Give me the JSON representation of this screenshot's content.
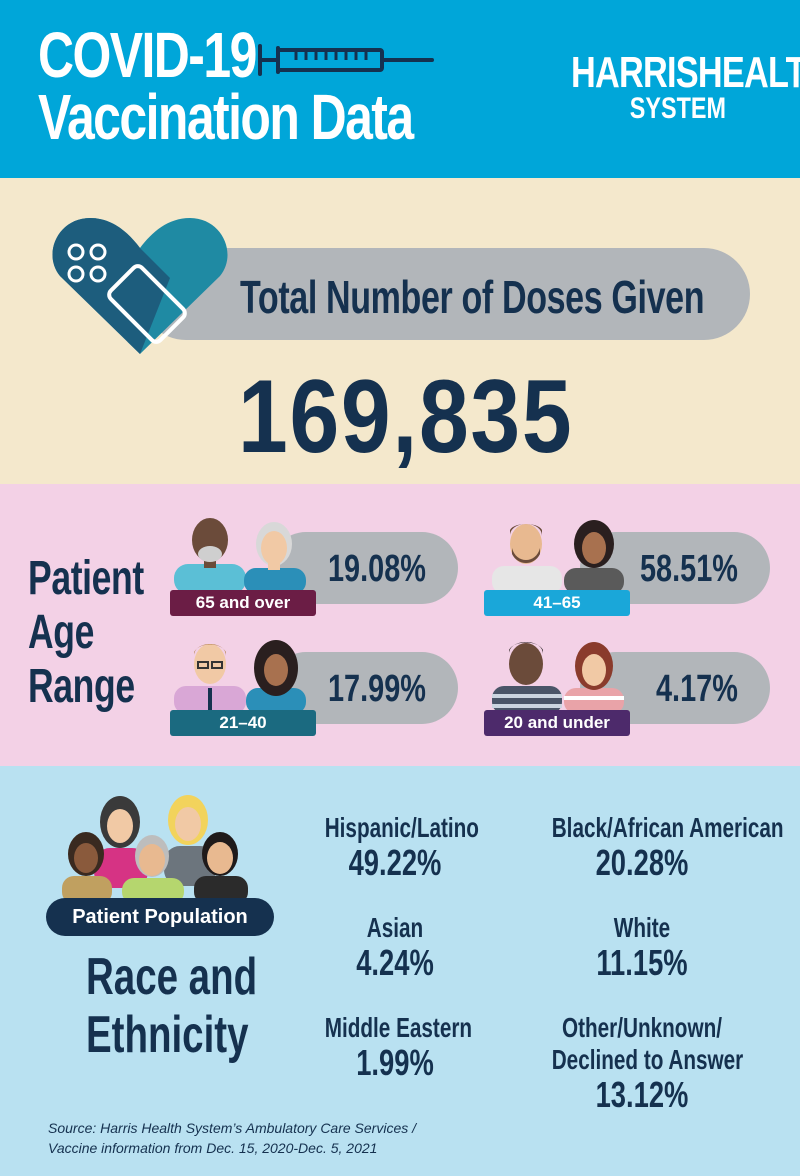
{
  "header": {
    "title_line1": "COVID-19",
    "title_line2": "Vaccination Data",
    "logo_line1": "HARRISHEALTH",
    "logo_line2": "SYSTEM"
  },
  "doses": {
    "label": "Total Number of Doses Given",
    "value": "169,835"
  },
  "age_range": {
    "title_lines": [
      "Patient",
      "Age",
      "Range"
    ],
    "groups": [
      {
        "tag": "65 and over",
        "value": "19.08%",
        "tag_color": "#6b1d45"
      },
      {
        "tag": "41–65",
        "value": "58.51%",
        "tag_color": "#1aa7d9"
      },
      {
        "tag": "21–40",
        "value": "17.99%",
        "tag_color": "#1b6a80"
      },
      {
        "tag": "20 and under",
        "value": "4.17%",
        "tag_color": "#4d2a6b"
      }
    ]
  },
  "race": {
    "badge": "Patient Population",
    "title_lines": [
      "Race and",
      "Ethnicity"
    ],
    "stats": [
      {
        "label": "Hispanic/Latino",
        "value": "49.22%"
      },
      {
        "label": "Black/African American",
        "value": "20.28%"
      },
      {
        "label": "Asian",
        "value": "4.24%"
      },
      {
        "label": "White",
        "value": "11.15%"
      },
      {
        "label": "Middle Eastern",
        "value": "1.99%"
      },
      {
        "label_lines": [
          "Other/Unknown/",
          "Declined to Answer"
        ],
        "value": "13.12%"
      }
    ],
    "source_line1": "Source: Harris Health System’s Ambulatory Care Services /",
    "source_line2": "Vaccine information from Dec. 15, 2020-Dec. 5, 2021"
  },
  "colors": {
    "header_bg": "#00a6d9",
    "doses_bg": "#f4e8cc",
    "age_bg": "#f3d1e6",
    "race_bg": "#b9e1f1",
    "navy": "#15314f",
    "pill_gray": "#b2b6ba"
  },
  "icons": [
    "syringe-icon",
    "bandage-heart-icon",
    "people-icon"
  ]
}
